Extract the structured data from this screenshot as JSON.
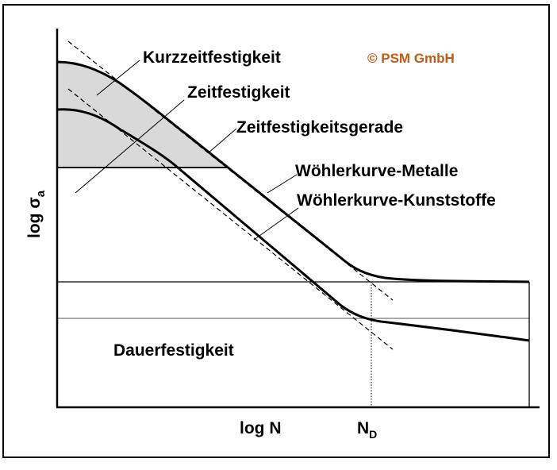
{
  "diagram": {
    "labels": {
      "kurzzeit": "Kurzzeitfestigkeit",
      "zeit": "Zeitfestigkeit",
      "gerade": "Zeitfestigkeitsgerade",
      "metalle": "Wöhlerkurve-Metalle",
      "kunststoffe": "Wöhlerkurve-Kunststoffe",
      "dauer": "Dauerfestigkeit"
    },
    "axes": {
      "ylabel_main": "log σ",
      "ylabel_sub": "a",
      "xlabel": "log N",
      "nd_main": "N",
      "nd_sub": "D"
    },
    "copyright": "© PSM GmbH",
    "colors": {
      "line": "#000000",
      "shade": "#d9d9d9",
      "copyright": "#c55a11"
    }
  }
}
